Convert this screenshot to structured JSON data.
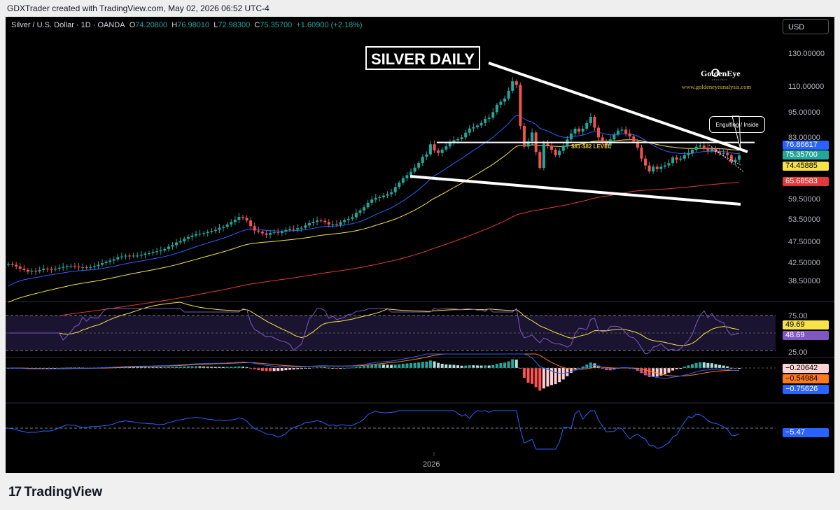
{
  "header": {
    "creator_line": "GDXTrader created with TradingView.com, May 02, 2026 06:52 UTC-4"
  },
  "legend": {
    "symbol": "Silver / U.S. Dollar · 1D · OANDA",
    "open_label": "O",
    "open": "74.20800",
    "high_label": "H",
    "high": "76.98010",
    "low_label": "L",
    "low": "72.98300",
    "close_label": "C",
    "close": "75.35700",
    "change": "+1.60900 (+2.18%)"
  },
  "currency_button": "USD",
  "annotations": {
    "title_box": "SILVER DAILY",
    "callout": "Engulfing / Inside",
    "level_label": "$81-$82 LEVEL",
    "logo_name": "GoldenEye",
    "logo_sub": "ANALYSIS",
    "logo_url": "www.goldeneyeanalysis.com"
  },
  "price_axis_labels": [
    "130.00000",
    "110.00000",
    "95.00000",
    "83.00000",
    "59.50000",
    "53.50000",
    "47.50000",
    "42.50000",
    "38.50000"
  ],
  "rsi_axis_labels": [
    "75.00",
    "25.00"
  ],
  "price_tags": [
    {
      "value": "76.86617",
      "bg": "#2962ff",
      "fg": "#ffffff"
    },
    {
      "value": "75.35700",
      "bg": "#26a69a",
      "fg": "#ffffff"
    },
    {
      "value": "74.45885",
      "bg": "#f7e24a",
      "fg": "#000000"
    },
    {
      "value": "65.68583",
      "bg": "#e03a3a",
      "fg": "#ffffff"
    }
  ],
  "rsi_tags": [
    {
      "value": "49.69",
      "bg": "#f7e24a",
      "fg": "#000000"
    },
    {
      "value": "48.69",
      "bg": "#7e57c2",
      "fg": "#ffffff"
    }
  ],
  "macd_tags": [
    {
      "value": "−0.20642",
      "bg": "#fbd5d5",
      "fg": "#000000"
    },
    {
      "value": "−0.54984",
      "bg": "#ff7a1a",
      "fg": "#000000"
    },
    {
      "value": "−0.75626",
      "bg": "#2962ff",
      "fg": "#ffffff"
    }
  ],
  "osc_tag": {
    "value": "−5.47",
    "bg": "#2962ff",
    "fg": "#ffffff"
  },
  "x_axis_label": "2026",
  "footer": {
    "brand": "TradingView"
  },
  "colors": {
    "up": "#26a69a",
    "down": "#ef5350",
    "ma_short": "#2962ff",
    "ma_mid": "#f7e24a",
    "ma_long": "#e03a3a",
    "rsi_line": "#7e57c2",
    "macd_line": "#2962ff",
    "signal_line": "#ff7a1a"
  },
  "chart_data": {
    "type": "candlestick",
    "symbol": "Silver / U.S. Dollar",
    "interval": "1D",
    "log_scale": true,
    "y_ticks": [
      130,
      110,
      95,
      83,
      59.5,
      53.5,
      47.5,
      42.5,
      38.5
    ],
    "price_ylim": [
      33.5,
      142
    ],
    "last_ohlc": {
      "open": 74.208,
      "high": 76.9801,
      "low": 72.983,
      "close": 75.357
    },
    "candle_closes": [
      39.4,
      39.2,
      38.8,
      38.3,
      38.0,
      37.6,
      37.8,
      37.7,
      38.0,
      38.3,
      38.2,
      38.1,
      38.3,
      38.5,
      38.7,
      38.9,
      38.9,
      38.8,
      38.6,
      38.6,
      38.5,
      38.7,
      38.9,
      39.2,
      39.6,
      39.9,
      40.2,
      40.5,
      41.0,
      41.2,
      41.4,
      41.3,
      41.4,
      41.4,
      41.6,
      41.9,
      42.0,
      42.3,
      42.5,
      42.7,
      43.1,
      43.7,
      44.1,
      44.8,
      45.1,
      45.8,
      46.3,
      46.7,
      47.1,
      47.2,
      47.4,
      47.7,
      48.0,
      48.3,
      48.9,
      49.2,
      49.9,
      50.6,
      51.3,
      52.2,
      51.9,
      51.1,
      49.4,
      48.1,
      47.8,
      47.3,
      46.9,
      47.4,
      47.6,
      47.4,
      47.8,
      48.3,
      48.6,
      48.4,
      48.8,
      48.9,
      49.6,
      50.3,
      50.7,
      51.1,
      51.0,
      50.6,
      49.9,
      50.0,
      49.8,
      50.6,
      51.2,
      51.6,
      52.1,
      53.5,
      54.3,
      55.3,
      56.8,
      57.9,
      58.5,
      58.7,
      59.3,
      59.8,
      60.5,
      62.4,
      64.1,
      65.8,
      67.0,
      68.4,
      70.1,
      72.1,
      74.8,
      75.9,
      80.6,
      77.7,
      76.5,
      78.1,
      79.6,
      81.3,
      82.6,
      83.1,
      84.0,
      86.4,
      88.6,
      89.3,
      90.2,
      91.6,
      93.8,
      94.5,
      97.7,
      102.1,
      104.0,
      106.0,
      111.0,
      117.5,
      115.0,
      90.0,
      79.5,
      82.0,
      86.5,
      77.0,
      70.0,
      81.0,
      80.0,
      78.0,
      75.5,
      77.5,
      80.0,
      83.0,
      86.0,
      88.5,
      87.0,
      88.5,
      91.5,
      95.0,
      89.0,
      84.0,
      81.5,
      80.0,
      83.0,
      85.5,
      87.5,
      88.0,
      86.0,
      84.5,
      82.0,
      79.0,
      74.0,
      71.0,
      68.5,
      70.5,
      69.5,
      70.5,
      71.0,
      72.0,
      74.5,
      73.5,
      74.0,
      75.5,
      76.5,
      78.0,
      79.5,
      80.0,
      79.0,
      77.5,
      78.5,
      77.0,
      76.5,
      76.5,
      75.5,
      72.5,
      73.5,
      75.357
    ],
    "moving_averages": [
      {
        "color": "#2962ff",
        "last_value": 76.86617
      },
      {
        "color": "#f7e24a",
        "last_value": 74.45885
      },
      {
        "color": "#e03a3a",
        "last_value": 65.68583
      }
    ],
    "horizontal_level": 81.5,
    "rsi": {
      "upper": 75,
      "lower": 25,
      "last": 48.69,
      "ma_last": 49.69
    },
    "macd": {
      "histogram_last": -0.20642,
      "signal_last": -0.54984,
      "macd_last": -0.75626
    },
    "oscillator": {
      "last": -5.47
    }
  }
}
